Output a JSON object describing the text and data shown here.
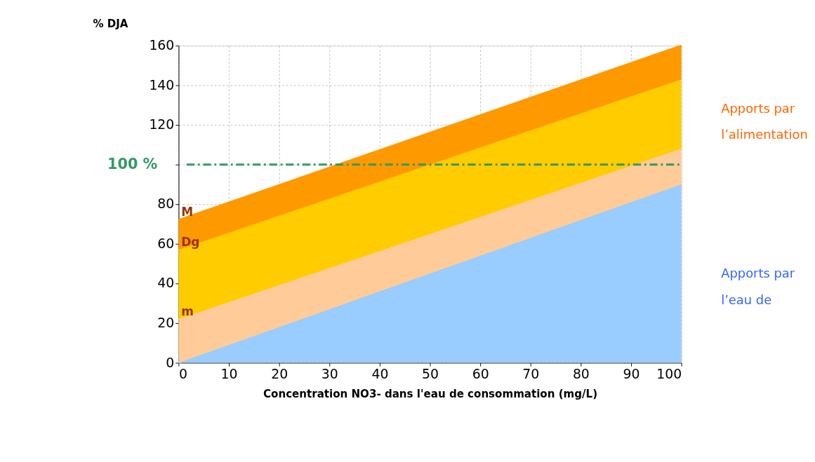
{
  "chart_data": {
    "type": "area",
    "stacked": true,
    "ylabel": "% DJA",
    "xlabel": "Concentration NO3- dans l'eau de consommation (mg/L)",
    "x": [
      0,
      100
    ],
    "series": [
      {
        "color": "#99ccff",
        "values": [
          0,
          90
        ]
      },
      {
        "name": "m",
        "color": "#ffcc99",
        "values": [
          22,
          18
        ]
      },
      {
        "name": "Dg",
        "color": "#ffcc00",
        "values": [
          35,
          35
        ]
      },
      {
        "name": "M",
        "color": "#ff9900",
        "values": [
          15,
          17
        ]
      }
    ],
    "xlim": [
      0,
      100
    ],
    "xticks": [
      0,
      10,
      20,
      30,
      40,
      50,
      60,
      70,
      80,
      90,
      100
    ],
    "ylim": [
      0,
      160
    ],
    "yticks": [
      0,
      20,
      40,
      60,
      80,
      {
        "value": 100,
        "label": null
      },
      120,
      140,
      160
    ],
    "grid": true,
    "ref_lines": [
      {
        "axis": "y",
        "value": 100,
        "label": "100 %",
        "color": "#339966",
        "line_style": "dashdot"
      }
    ],
    "annotations": [
      "Apports par l’alimentation",
      "Apports par l’eau de"
    ]
  }
}
